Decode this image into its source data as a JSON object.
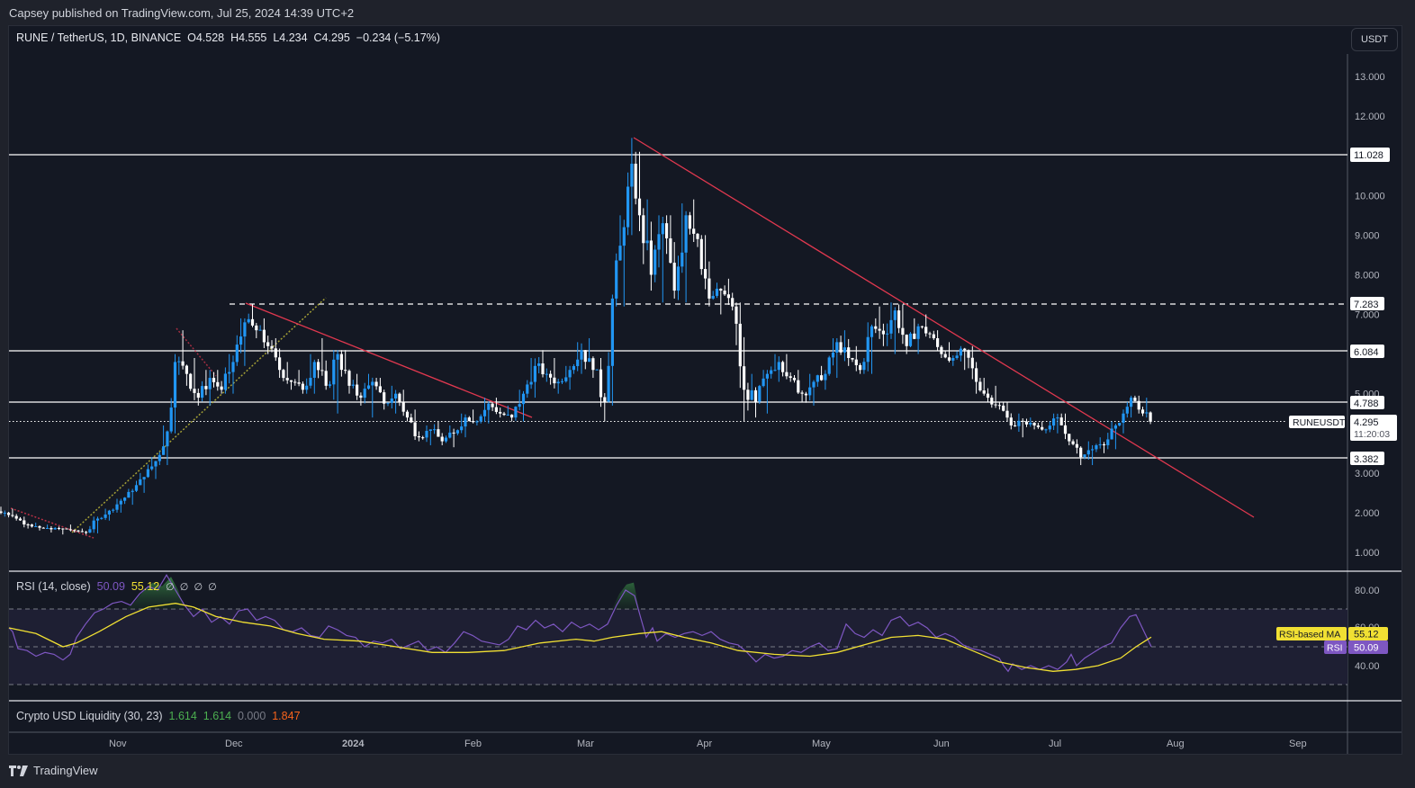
{
  "publisher": "Capsey published on TradingView.com, Jul 25, 2024 14:39 UTC+2",
  "header": {
    "symbol": "RUNE / TetherUS, 1D, BINANCE",
    "open": "O4.528",
    "high": "H4.555",
    "low": "L4.234",
    "close": "C4.295",
    "change": "−0.234 (−5.17%)"
  },
  "unit_button": "USDT",
  "price_axis": {
    "ticks": [
      "13.000",
      "12.000",
      "10.000",
      "9.000",
      "8.000",
      "7.000",
      "5.000",
      "3.000",
      "2.000",
      "1.000"
    ],
    "level_labels": [
      "11.028",
      "7.283",
      "6.084",
      "4.788",
      "3.382"
    ],
    "symbol_tag": "RUNEUSDT",
    "last_price": "4.295",
    "countdown": "11:20:03"
  },
  "rsi_panel": {
    "title": "RSI (14, close)",
    "rsi_value": "50.09",
    "ma_value": "55.12",
    "extra": "∅  ∅  ∅  ∅",
    "ticks": [
      "80.00",
      "60.00",
      "40.00"
    ],
    "ma_tag_label": "RSI-based MA",
    "ma_tag_value": "55.12",
    "rsi_tag_label": "RSI",
    "rsi_tag_value": "50.09"
  },
  "liquidity_panel": {
    "title": "Crypto USD Liquidity (30, 23)",
    "v1": "1.614",
    "v2": "1.614",
    "v3": "0.000",
    "v4": "1.847"
  },
  "time_axis": {
    "labels": [
      "Nov",
      "Dec",
      "2024",
      "Feb",
      "Mar",
      "Apr",
      "May",
      "Jun",
      "Jul",
      "Aug",
      "Sep"
    ]
  },
  "brand": "TradingView",
  "colors": {
    "background": "#141823",
    "up": "#2196f3",
    "down": "#ffffff",
    "trendline": "#e0384f",
    "support_trend": "#c7c13a",
    "rsi": "#7e57c2",
    "rsi_ma": "#f1e033",
    "liq_green": "#4caf50",
    "liq_grey": "#787b86",
    "liq_orange": "#f7631b"
  },
  "chart_data": {
    "type": "candlestick",
    "title": "RUNE / TetherUS, 1D, BINANCE",
    "xlabel": "",
    "ylabel": "USDT",
    "ylim": [
      0.5,
      13.5
    ],
    "x_range": [
      "2023-10-01",
      "2024-09-10"
    ],
    "horizontal_levels": [
      11.028,
      7.283,
      6.084,
      4.788,
      3.382
    ],
    "last_price": 4.295,
    "ohlc_last": {
      "open": 4.528,
      "high": 4.555,
      "low": 4.234,
      "close": 4.295,
      "change": -0.234,
      "change_pct": -5.17
    },
    "trendlines": [
      {
        "name": "downtrend-oct",
        "from": [
          "2023-10-01",
          2.15
        ],
        "to": [
          "2023-10-23",
          1.35
        ],
        "style": "dotted",
        "color": "#e0384f"
      },
      {
        "name": "uptrend-support",
        "from": [
          "2023-10-25",
          1.5
        ],
        "to": [
          "2023-12-24",
          7.45
        ],
        "style": "dotted",
        "color": "#c7c13a"
      },
      {
        "name": "downtrend-nov",
        "from": [
          "2023-11-16",
          6.6
        ],
        "to": [
          "2023-12-02",
          5.1
        ],
        "style": "dotted",
        "color": "#e0384f"
      },
      {
        "name": "downtrend-dec-feb",
        "from": [
          "2023-12-04",
          7.3
        ],
        "to": [
          "2024-02-16",
          4.4
        ],
        "style": "solid",
        "color": "#e0384f"
      },
      {
        "name": "downtrend-mar-aug",
        "from": [
          "2024-03-13",
          11.45
        ],
        "to": [
          "2024-08-21",
          1.95
        ],
        "style": "solid",
        "color": "#e0384f"
      }
    ],
    "candles_approx": [
      [
        "2023-10-01",
        2.05,
        2.15,
        1.9,
        2.0
      ],
      [
        "2023-10-04",
        2.0,
        2.1,
        1.8,
        1.85
      ],
      [
        "2023-10-07",
        1.85,
        1.9,
        1.6,
        1.7
      ],
      [
        "2023-10-10",
        1.7,
        1.75,
        1.55,
        1.62
      ],
      [
        "2023-10-13",
        1.62,
        1.7,
        1.5,
        1.58
      ],
      [
        "2023-10-16",
        1.58,
        1.65,
        1.45,
        1.6
      ],
      [
        "2023-10-19",
        1.6,
        1.7,
        1.5,
        1.55
      ],
      [
        "2023-10-22",
        1.55,
        1.6,
        1.45,
        1.5
      ],
      [
        "2023-10-25",
        1.5,
        1.9,
        1.48,
        1.85
      ],
      [
        "2023-10-28",
        1.85,
        2.1,
        1.8,
        2.05
      ],
      [
        "2023-10-31",
        2.05,
        2.35,
        2.0,
        2.3
      ],
      [
        "2023-11-03",
        2.3,
        2.6,
        2.2,
        2.55
      ],
      [
        "2023-11-06",
        2.55,
        3.0,
        2.5,
        2.9
      ],
      [
        "2023-11-09",
        2.9,
        3.4,
        2.85,
        3.3
      ],
      [
        "2023-11-12",
        3.3,
        4.2,
        3.2,
        4.05
      ],
      [
        "2023-11-15",
        4.05,
        6.0,
        4.0,
        5.8
      ],
      [
        "2023-11-17",
        5.8,
        6.6,
        5.2,
        5.5
      ],
      [
        "2023-11-20",
        5.5,
        5.9,
        4.7,
        4.9
      ],
      [
        "2023-11-23",
        4.9,
        5.6,
        4.7,
        5.4
      ],
      [
        "2023-11-26",
        5.4,
        5.6,
        5.0,
        5.1
      ],
      [
        "2023-11-29",
        5.1,
        6.0,
        5.0,
        5.8
      ],
      [
        "2023-12-02",
        5.8,
        6.9,
        5.7,
        6.8
      ],
      [
        "2023-12-05",
        6.8,
        7.25,
        6.4,
        6.6
      ],
      [
        "2023-12-08",
        6.6,
        6.9,
        6.0,
        6.2
      ],
      [
        "2023-12-11",
        6.2,
        6.4,
        5.4,
        5.6
      ],
      [
        "2023-12-14",
        5.6,
        5.8,
        5.1,
        5.3
      ],
      [
        "2023-12-17",
        5.3,
        5.6,
        5.0,
        5.1
      ],
      [
        "2023-12-20",
        5.1,
        6.0,
        5.0,
        5.8
      ],
      [
        "2023-12-23",
        5.8,
        6.4,
        5.1,
        5.2
      ],
      [
        "2023-12-26",
        5.2,
        6.1,
        4.5,
        6.0
      ],
      [
        "2023-12-29",
        6.0,
        6.1,
        5.0,
        5.2
      ],
      [
        "2024-01-01",
        5.2,
        5.5,
        4.7,
        4.9
      ],
      [
        "2024-01-04",
        4.9,
        5.5,
        4.4,
        5.3
      ],
      [
        "2024-01-07",
        5.3,
        5.4,
        4.6,
        4.75
      ],
      [
        "2024-01-10",
        4.75,
        5.2,
        4.5,
        5.0
      ],
      [
        "2024-01-13",
        5.0,
        5.1,
        4.3,
        4.4
      ],
      [
        "2024-01-16",
        4.4,
        4.6,
        3.8,
        3.9
      ],
      [
        "2024-01-19",
        3.9,
        4.2,
        3.7,
        4.1
      ],
      [
        "2024-01-22",
        4.1,
        4.3,
        3.7,
        3.8
      ],
      [
        "2024-01-25",
        3.8,
        4.2,
        3.65,
        4.0
      ],
      [
        "2024-01-28",
        4.0,
        4.5,
        3.9,
        4.4
      ],
      [
        "2024-01-31",
        4.4,
        4.6,
        4.2,
        4.3
      ],
      [
        "2024-02-03",
        4.3,
        4.9,
        4.25,
        4.75
      ],
      [
        "2024-02-06",
        4.75,
        4.9,
        4.4,
        4.5
      ],
      [
        "2024-02-09",
        4.5,
        4.7,
        4.3,
        4.4
      ],
      [
        "2024-02-12",
        4.4,
        5.1,
        4.3,
        5.0
      ],
      [
        "2024-02-15",
        5.0,
        5.9,
        4.9,
        5.7
      ],
      [
        "2024-02-18",
        5.7,
        6.1,
        5.3,
        5.5
      ],
      [
        "2024-02-21",
        5.5,
        5.9,
        5.0,
        5.3
      ],
      [
        "2024-02-24",
        5.3,
        5.7,
        5.1,
        5.6
      ],
      [
        "2024-02-27",
        5.6,
        6.3,
        5.5,
        6.1
      ],
      [
        "2024-03-01",
        6.1,
        6.4,
        5.4,
        5.6
      ],
      [
        "2024-03-04",
        5.6,
        5.9,
        4.3,
        4.8
      ],
      [
        "2024-03-07",
        4.8,
        7.5,
        4.7,
        7.4
      ],
      [
        "2024-03-09",
        7.4,
        9.5,
        7.2,
        9.2
      ],
      [
        "2024-03-12",
        9.2,
        11.45,
        9.0,
        10.8
      ],
      [
        "2024-03-14",
        10.8,
        11.1,
        9.1,
        9.5
      ],
      [
        "2024-03-16",
        9.5,
        9.9,
        7.6,
        8.0
      ],
      [
        "2024-03-19",
        8.0,
        9.5,
        7.3,
        9.3
      ],
      [
        "2024-03-22",
        9.3,
        9.5,
        7.4,
        7.6
      ],
      [
        "2024-03-25",
        7.6,
        9.8,
        7.3,
        9.5
      ],
      [
        "2024-03-28",
        9.5,
        9.9,
        8.7,
        8.9
      ],
      [
        "2024-03-31",
        8.9,
        9.0,
        7.2,
        7.4
      ],
      [
        "2024-04-03",
        7.4,
        7.8,
        7.0,
        7.6
      ],
      [
        "2024-04-06",
        7.6,
        7.9,
        7.1,
        7.2
      ],
      [
        "2024-04-09",
        7.2,
        7.3,
        4.3,
        5.1
      ],
      [
        "2024-04-12",
        5.1,
        5.5,
        4.4,
        4.8
      ],
      [
        "2024-04-15",
        4.8,
        5.6,
        4.5,
        5.5
      ],
      [
        "2024-04-18",
        5.5,
        6.0,
        5.3,
        5.8
      ],
      [
        "2024-04-21",
        5.8,
        6.0,
        5.3,
        5.4
      ],
      [
        "2024-04-24",
        5.4,
        5.6,
        4.8,
        5.0
      ],
      [
        "2024-04-27",
        5.0,
        5.5,
        4.7,
        5.3
      ],
      [
        "2024-04-30",
        5.3,
        5.7,
        5.1,
        5.5
      ],
      [
        "2024-05-03",
        5.5,
        6.4,
        5.4,
        6.3
      ],
      [
        "2024-05-06",
        6.3,
        6.6,
        5.7,
        5.9
      ],
      [
        "2024-05-09",
        5.9,
        6.2,
        5.5,
        5.6
      ],
      [
        "2024-05-12",
        5.6,
        6.8,
        5.5,
        6.7
      ],
      [
        "2024-05-15",
        6.7,
        7.2,
        6.2,
        6.5
      ],
      [
        "2024-05-18",
        6.5,
        7.3,
        6.0,
        7.1
      ],
      [
        "2024-05-21",
        7.1,
        7.25,
        6.0,
        6.2
      ],
      [
        "2024-05-24",
        6.2,
        6.9,
        6.0,
        6.7
      ],
      [
        "2024-05-27",
        6.7,
        7.0,
        6.4,
        6.5
      ],
      [
        "2024-05-30",
        6.5,
        6.6,
        5.9,
        6.0
      ],
      [
        "2024-06-02",
        6.0,
        6.3,
        5.7,
        5.9
      ],
      [
        "2024-06-05",
        5.9,
        6.2,
        5.6,
        6.1
      ],
      [
        "2024-06-08",
        6.1,
        6.2,
        5.0,
        5.3
      ],
      [
        "2024-06-11",
        5.3,
        5.4,
        4.8,
        4.9
      ],
      [
        "2024-06-14",
        4.9,
        5.2,
        4.6,
        4.7
      ],
      [
        "2024-06-17",
        4.7,
        4.8,
        4.1,
        4.2
      ],
      [
        "2024-06-20",
        4.2,
        4.5,
        3.9,
        4.3
      ],
      [
        "2024-06-23",
        4.3,
        4.4,
        4.1,
        4.2
      ],
      [
        "2024-06-26",
        4.2,
        4.3,
        4.0,
        4.1
      ],
      [
        "2024-06-29",
        4.1,
        4.5,
        4.0,
        4.4
      ],
      [
        "2024-07-02",
        4.4,
        4.5,
        3.7,
        3.8
      ],
      [
        "2024-07-05",
        3.8,
        3.85,
        3.2,
        3.4
      ],
      [
        "2024-07-08",
        3.4,
        3.8,
        3.2,
        3.6
      ],
      [
        "2024-07-11",
        3.6,
        3.9,
        3.5,
        3.7
      ],
      [
        "2024-07-14",
        3.7,
        4.3,
        3.6,
        4.2
      ],
      [
        "2024-07-17",
        4.2,
        4.6,
        4.0,
        4.5
      ],
      [
        "2024-07-19",
        4.5,
        4.95,
        4.4,
        4.9
      ],
      [
        "2024-07-21",
        4.9,
        4.95,
        4.5,
        4.6
      ],
      [
        "2024-07-23",
        4.6,
        4.9,
        4.4,
        4.53
      ],
      [
        "2024-07-25",
        4.528,
        4.555,
        4.234,
        4.295
      ]
    ],
    "rsi": {
      "period": 14,
      "source": "close",
      "value": 50.09,
      "ma_value": 55.12,
      "ylim": [
        20,
        90
      ],
      "bands": [
        70,
        50,
        30
      ]
    },
    "liquidity": {
      "name": "Crypto USD Liquidity (30, 23)",
      "values": [
        1.614,
        1.614,
        0.0,
        1.847
      ]
    }
  }
}
